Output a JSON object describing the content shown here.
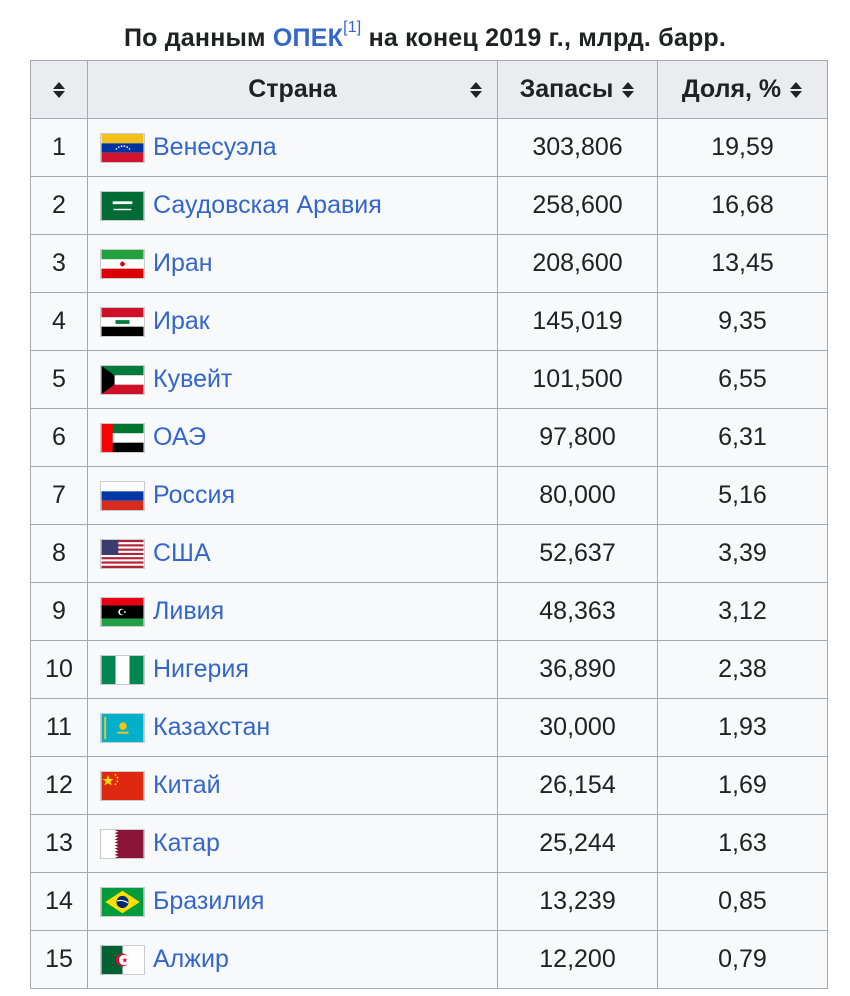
{
  "caption": {
    "prefix": "По данным ",
    "link": "ОПЕК",
    "ref": "[1]",
    "suffix": " на конец 2019 г., млрд. барр."
  },
  "headers": {
    "rank": "",
    "country": "Страна",
    "reserves": "Запасы",
    "share": "Доля, %"
  },
  "rows": [
    {
      "rank": "1",
      "country": "Венесуэла",
      "reserves": "303,806",
      "share": "19,59",
      "flag": "venezuela-flag-icon"
    },
    {
      "rank": "2",
      "country": "Саудовская Аравия",
      "reserves": "258,600",
      "share": "16,68",
      "flag": "saudi-arabia-flag-icon"
    },
    {
      "rank": "3",
      "country": "Иран",
      "reserves": "208,600",
      "share": "13,45",
      "flag": "iran-flag-icon"
    },
    {
      "rank": "4",
      "country": "Ирак",
      "reserves": "145,019",
      "share": "9,35",
      "flag": "iraq-flag-icon"
    },
    {
      "rank": "5",
      "country": "Кувейт",
      "reserves": "101,500",
      "share": "6,55",
      "flag": "kuwait-flag-icon"
    },
    {
      "rank": "6",
      "country": "ОАЭ",
      "reserves": "97,800",
      "share": "6,31",
      "flag": "uae-flag-icon"
    },
    {
      "rank": "7",
      "country": "Россия",
      "reserves": "80,000",
      "share": "5,16",
      "flag": "russia-flag-icon"
    },
    {
      "rank": "8",
      "country": "США",
      "reserves": "52,637",
      "share": "3,39",
      "flag": "usa-flag-icon"
    },
    {
      "rank": "9",
      "country": "Ливия",
      "reserves": "48,363",
      "share": "3,12",
      "flag": "libya-flag-icon"
    },
    {
      "rank": "10",
      "country": "Нигерия",
      "reserves": "36,890",
      "share": "2,38",
      "flag": "nigeria-flag-icon"
    },
    {
      "rank": "11",
      "country": "Казахстан",
      "reserves": "30,000",
      "share": "1,93",
      "flag": "kazakhstan-flag-icon"
    },
    {
      "rank": "12",
      "country": "Китай",
      "reserves": "26,154",
      "share": "1,69",
      "flag": "china-flag-icon"
    },
    {
      "rank": "13",
      "country": "Катар",
      "reserves": "25,244",
      "share": "1,63",
      "flag": "qatar-flag-icon"
    },
    {
      "rank": "14",
      "country": "Бразилия",
      "reserves": "13,239",
      "share": "0,85",
      "flag": "brazil-flag-icon"
    },
    {
      "rank": "15",
      "country": "Алжир",
      "reserves": "12,200",
      "share": "0,79",
      "flag": "algeria-flag-icon"
    }
  ],
  "colors": {
    "link": "#3366cc",
    "header_bg": "#eaecf0",
    "cell_bg": "#f8f9fa",
    "border": "#a2a9b1"
  }
}
